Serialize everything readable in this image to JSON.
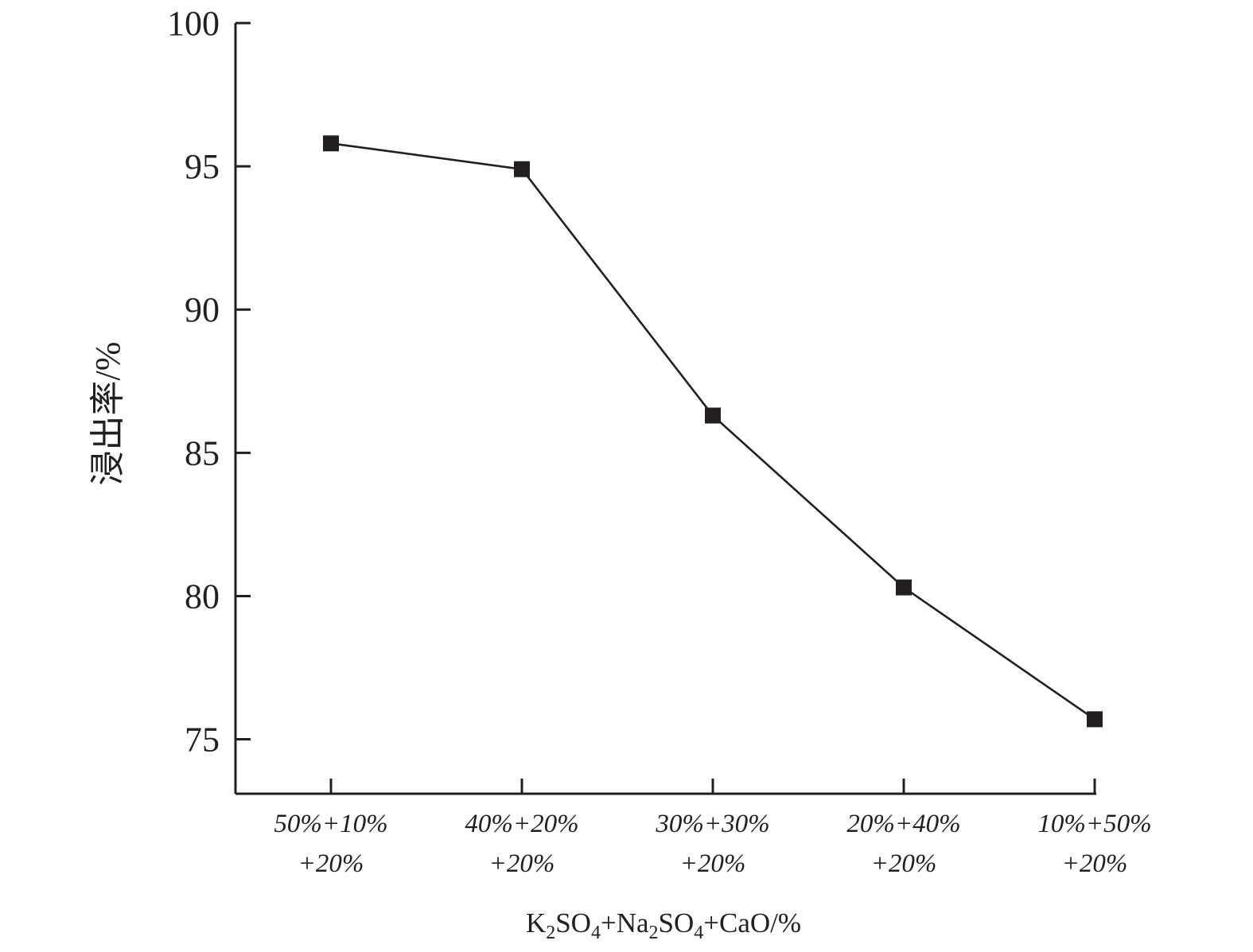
{
  "chart_data": {
    "type": "line",
    "categories": [
      [
        "50%+10%",
        "+20%"
      ],
      [
        "40%+20%",
        "+20%"
      ],
      [
        "30%+30%",
        "+20%"
      ],
      [
        "20%+40%",
        "+20%"
      ],
      [
        "10%+50%",
        "+20%"
      ]
    ],
    "series": [
      {
        "values": [
          95.8,
          94.9,
          86.3,
          80.3,
          75.7
        ],
        "marker": "square",
        "color": "#231f20"
      }
    ],
    "ylabel": "浸出率/%",
    "xlabel_parts": [
      "K",
      "2",
      "SO",
      "4",
      "+Na",
      "2",
      "SO",
      "4",
      "+CaO/%"
    ],
    "ylim": [
      73.1,
      100
    ],
    "yticks": [
      "75",
      "80",
      "85",
      "90",
      "95",
      "100"
    ],
    "grid": false,
    "legend": "none"
  }
}
